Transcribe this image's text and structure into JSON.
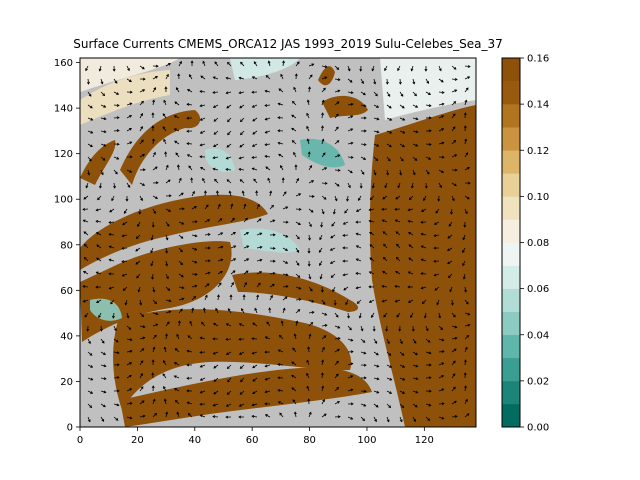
{
  "chart_data": {
    "type": "heatmap",
    "title": "Surface Currents CMEMS_ORCA12 JAS 1993_2019 Sulu-Celebes_Sea_37",
    "xlabel": "",
    "ylabel": "",
    "xlim": [
      0,
      138
    ],
    "ylim": [
      0,
      162
    ],
    "x_ticks": [
      "0",
      "20",
      "40",
      "60",
      "80",
      "100",
      "120"
    ],
    "y_ticks": [
      "0",
      "20",
      "40",
      "60",
      "80",
      "100",
      "120",
      "140",
      "160"
    ],
    "grid": false,
    "land_color": "#c0c0c0",
    "colorbar": {
      "range": [
        0.0,
        0.16
      ],
      "ticks": [
        "0.00",
        "0.02",
        "0.04",
        "0.06",
        "0.08",
        "0.10",
        "0.12",
        "0.14",
        "0.16"
      ],
      "levels": 16,
      "colors": [
        "#016c5f",
        "#1b8579",
        "#3b9e92",
        "#5fb6aa",
        "#8ccbc1",
        "#b1ddd6",
        "#d3ece8",
        "#eef5f3",
        "#f6efe0",
        "#f1e2bf",
        "#e9d096",
        "#ddb569",
        "#c9933f",
        "#b1741f",
        "#985b0d",
        "#8d5109"
      ]
    },
    "arrows": "black quiver arrows showing surface current direction"
  }
}
